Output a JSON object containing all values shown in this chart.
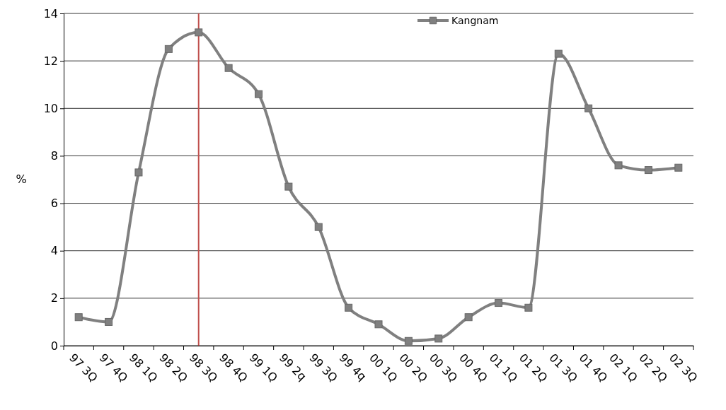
{
  "chart_data": {
    "type": "line",
    "ylabel": "%",
    "categories": [
      "97 3Q",
      "97 4Q",
      "98 1Q",
      "98 2Q",
      "98 3Q",
      "98 4Q",
      "99 1Q",
      "99 2q",
      "99 3Q",
      "99 4q",
      "00 1Q",
      "00 2Q",
      "00 3Q",
      "00 4Q",
      "01 1Q",
      "01 2Q",
      "01 3Q",
      "01 4Q",
      "02 1Q",
      "02 2Q",
      "02 3Q"
    ],
    "series": [
      {
        "name": "Kangnam",
        "color": "#808080",
        "values": [
          1.2,
          1.0,
          7.3,
          12.5,
          13.2,
          11.7,
          10.6,
          6.7,
          5.0,
          1.6,
          0.9,
          0.2,
          0.3,
          1.2,
          1.8,
          1.6,
          12.3,
          10.0,
          7.6,
          7.4,
          7.5
        ]
      }
    ],
    "ylim": [
      0,
      14
    ],
    "yticks": [
      0,
      2,
      4,
      6,
      8,
      10,
      12,
      14
    ],
    "grid": "y",
    "legend": "top right",
    "marker": "square",
    "line_style": "solid",
    "ref_lines": [
      {
        "axis": "x",
        "value": "98 3Q",
        "color": "#c0504d"
      }
    ]
  }
}
